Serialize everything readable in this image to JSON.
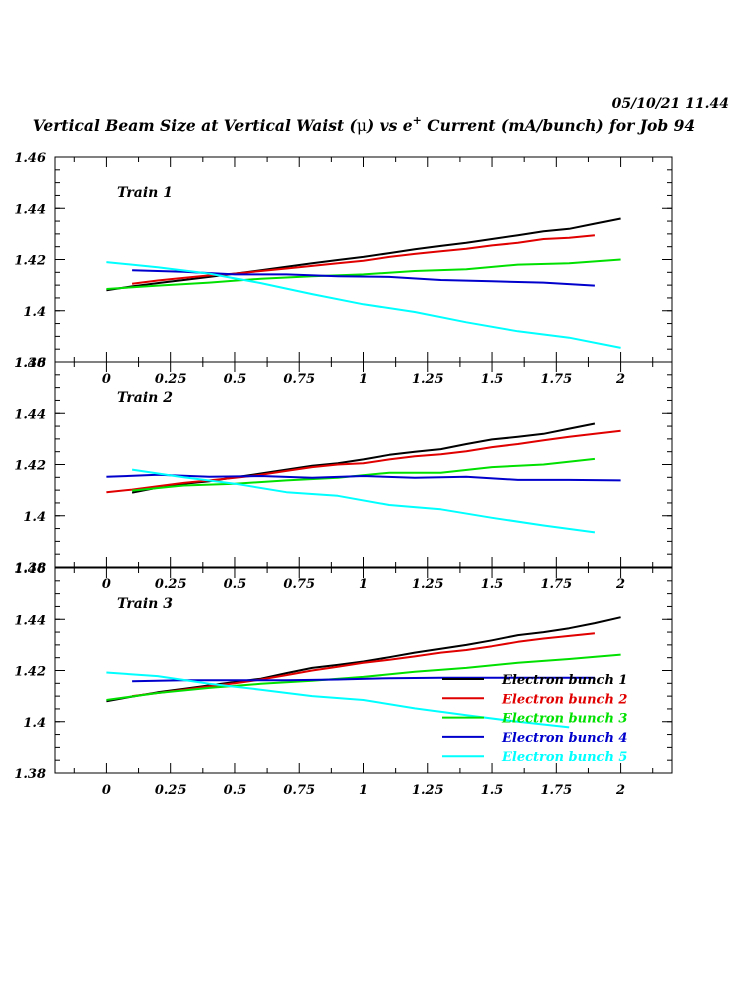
{
  "header": {
    "datetime": "05/10/21  11.44",
    "title_prefix": "Vertical Beam Size at Vertical Waist (",
    "title_mu": "μ",
    "title_mid": ") vs e",
    "title_sup": "+",
    "title_suffix": " Current (mA/bunch) for Job 94"
  },
  "chart_data": {
    "type": "line",
    "xlabel": "",
    "ylabel": "",
    "xlim": [
      -0.2,
      2.2
    ],
    "ylim": [
      1.38,
      1.46
    ],
    "x_ticks": [
      "0",
      "0.25",
      "0.5",
      "0.75",
      "1",
      "1.25",
      "1.5",
      "1.75",
      "2"
    ],
    "y_ticks": [
      "1.38",
      "1.4",
      "1.42",
      "1.44",
      "1.46"
    ],
    "grid": false,
    "legend_position": "inside bottom-right of third panel",
    "series_styles": [
      {
        "name": "Electron bunch 1",
        "color": "#000000"
      },
      {
        "name": "Electron bunch 2",
        "color": "#e00000"
      },
      {
        "name": "Electron bunch 3",
        "color": "#00e000"
      },
      {
        "name": "Electron bunch 4",
        "color": "#0000cc"
      },
      {
        "name": "Electron bunch 5",
        "color": "#00ffff"
      }
    ],
    "panels": [
      {
        "label": "Train 1",
        "series": [
          {
            "name": "Electron bunch 1",
            "x": [
              0,
              0.1,
              0.2,
              0.3,
              0.4,
              0.5,
              0.6,
              0.7,
              0.8,
              0.9,
              1.0,
              1.1,
              1.2,
              1.3,
              1.4,
              1.5,
              1.6,
              1.7,
              1.8,
              1.9,
              2.0
            ],
            "y": [
              1.408,
              1.4095,
              1.4108,
              1.412,
              1.4132,
              1.4145,
              1.4158,
              1.4172,
              1.4185,
              1.4198,
              1.421,
              1.4225,
              1.424,
              1.4253,
              1.4265,
              1.428,
              1.4295,
              1.431,
              1.432,
              1.434,
              1.436
            ]
          },
          {
            "name": "Electron bunch 2",
            "x": [
              0.1,
              0.2,
              0.3,
              0.4,
              0.5,
              0.6,
              0.7,
              0.8,
              0.9,
              1.0,
              1.1,
              1.2,
              1.3,
              1.4,
              1.5,
              1.6,
              1.7,
              1.8,
              1.9
            ],
            "y": [
              1.4105,
              1.4118,
              1.4128,
              1.4138,
              1.4145,
              1.4155,
              1.4165,
              1.4175,
              1.4185,
              1.4195,
              1.421,
              1.4222,
              1.4232,
              1.4242,
              1.4255,
              1.4265,
              1.428,
              1.4285,
              1.4295
            ]
          },
          {
            "name": "Electron bunch 3",
            "x": [
              0,
              0.2,
              0.4,
              0.6,
              0.8,
              1.0,
              1.2,
              1.4,
              1.6,
              1.8,
              2.0
            ],
            "y": [
              1.4085,
              1.4098,
              1.411,
              1.4125,
              1.4135,
              1.4142,
              1.4155,
              1.4162,
              1.418,
              1.4185,
              1.42
            ]
          },
          {
            "name": "Electron bunch 4",
            "x": [
              0.1,
              0.3,
              0.5,
              0.7,
              0.9,
              1.1,
              1.3,
              1.5,
              1.7,
              1.9
            ],
            "y": [
              1.4158,
              1.4152,
              1.4142,
              1.4142,
              1.4135,
              1.4132,
              1.412,
              1.4115,
              1.411,
              1.4098
            ]
          },
          {
            "name": "Electron bunch 5",
            "x": [
              0,
              0.2,
              0.4,
              0.6,
              0.8,
              1.0,
              1.2,
              1.4,
              1.6,
              1.8,
              2.0
            ],
            "y": [
              1.419,
              1.417,
              1.4145,
              1.4108,
              1.4065,
              1.4025,
              1.3995,
              1.3955,
              1.392,
              1.3895,
              1.3855
            ]
          }
        ]
      },
      {
        "label": "Train 2",
        "series": [
          {
            "name": "Electron bunch 1",
            "x": [
              0.1,
              0.2,
              0.3,
              0.4,
              0.5,
              0.6,
              0.7,
              0.8,
              0.9,
              1.0,
              1.1,
              1.2,
              1.3,
              1.4,
              1.5,
              1.6,
              1.7,
              1.8,
              1.9
            ],
            "y": [
              1.409,
              1.411,
              1.4125,
              1.4135,
              1.415,
              1.4165,
              1.418,
              1.4195,
              1.4205,
              1.422,
              1.4238,
              1.425,
              1.426,
              1.428,
              1.4298,
              1.4308,
              1.432,
              1.434,
              1.436
            ]
          },
          {
            "name": "Electron bunch 2",
            "x": [
              0,
              0.1,
              0.2,
              0.3,
              0.4,
              0.5,
              0.6,
              0.7,
              0.8,
              0.9,
              1.0,
              1.1,
              1.2,
              1.3,
              1.4,
              1.5,
              1.6,
              1.7,
              1.8,
              1.9,
              2.0
            ],
            "y": [
              1.4092,
              1.4102,
              1.4115,
              1.4128,
              1.4138,
              1.4148,
              1.416,
              1.4175,
              1.419,
              1.42,
              1.4205,
              1.422,
              1.4232,
              1.424,
              1.4252,
              1.4268,
              1.428,
              1.4295,
              1.4308,
              1.432,
              1.4332
            ]
          },
          {
            "name": "Electron bunch 3",
            "x": [
              0.1,
              0.3,
              0.5,
              0.7,
              0.9,
              1.1,
              1.3,
              1.5,
              1.7,
              1.9
            ],
            "y": [
              1.4098,
              1.4118,
              1.4125,
              1.4138,
              1.4148,
              1.4168,
              1.4168,
              1.419,
              1.42,
              1.4222
            ]
          },
          {
            "name": "Electron bunch 4",
            "x": [
              0,
              0.2,
              0.4,
              0.6,
              0.8,
              1.0,
              1.2,
              1.4,
              1.6,
              1.8,
              2.0
            ],
            "y": [
              1.4152,
              1.416,
              1.4152,
              1.4155,
              1.4148,
              1.4155,
              1.4148,
              1.4152,
              1.414,
              1.414,
              1.4138
            ]
          },
          {
            "name": "Electron bunch 5",
            "x": [
              0.1,
              0.3,
              0.5,
              0.7,
              0.9,
              1.1,
              1.3,
              1.5,
              1.7,
              1.9
            ],
            "y": [
              1.418,
              1.415,
              1.4125,
              1.4092,
              1.4078,
              1.4042,
              1.4025,
              1.3992,
              1.3962,
              1.3935
            ]
          }
        ]
      },
      {
        "label": "Train 3",
        "series": [
          {
            "name": "Electron bunch 1",
            "x": [
              0,
              0.1,
              0.2,
              0.3,
              0.4,
              0.5,
              0.6,
              0.7,
              0.8,
              0.9,
              1.0,
              1.1,
              1.2,
              1.3,
              1.4,
              1.5,
              1.6,
              1.7,
              1.8,
              1.9,
              2.0
            ],
            "y": [
              1.408,
              1.4098,
              1.4115,
              1.4128,
              1.4142,
              1.4155,
              1.4168,
              1.419,
              1.421,
              1.4222,
              1.4235,
              1.4252,
              1.427,
              1.4285,
              1.43,
              1.4318,
              1.4338,
              1.435,
              1.4365,
              1.4385,
              1.4408
            ]
          },
          {
            "name": "Electron bunch 2",
            "x": [
              0.1,
              0.2,
              0.3,
              0.4,
              0.5,
              0.6,
              0.7,
              0.8,
              0.9,
              1.0,
              1.1,
              1.2,
              1.3,
              1.4,
              1.5,
              1.6,
              1.7,
              1.8,
              1.9
            ],
            "y": [
              1.41,
              1.4112,
              1.4125,
              1.4138,
              1.415,
              1.4165,
              1.4182,
              1.42,
              1.4215,
              1.423,
              1.4242,
              1.4255,
              1.427,
              1.428,
              1.4295,
              1.4312,
              1.4325,
              1.4335,
              1.4345
            ]
          },
          {
            "name": "Electron bunch 3",
            "x": [
              0,
              0.2,
              0.4,
              0.6,
              0.8,
              1.0,
              1.2,
              1.4,
              1.6,
              1.8,
              2.0
            ],
            "y": [
              1.4085,
              1.4112,
              1.4132,
              1.4148,
              1.416,
              1.4175,
              1.4195,
              1.421,
              1.423,
              1.4245,
              1.4262
            ]
          },
          {
            "name": "Electron bunch 4",
            "x": [
              0.1,
              0.3,
              0.5,
              0.7,
              0.9,
              1.1,
              1.3,
              1.5,
              1.7,
              1.9
            ],
            "y": [
              1.4158,
              1.4162,
              1.4162,
              1.4162,
              1.4165,
              1.417,
              1.4172,
              1.4172,
              1.4172,
              1.4172
            ]
          },
          {
            "name": "Electron bunch 5",
            "x": [
              0,
              0.2,
              0.4,
              0.6,
              0.8,
              1.0,
              1.2,
              1.4,
              1.6,
              1.8
            ],
            "y": [
              1.4192,
              1.4178,
              1.4148,
              1.4125,
              1.41,
              1.4085,
              1.4052,
              1.4025,
              1.4,
              1.3978
            ]
          }
        ]
      }
    ]
  }
}
